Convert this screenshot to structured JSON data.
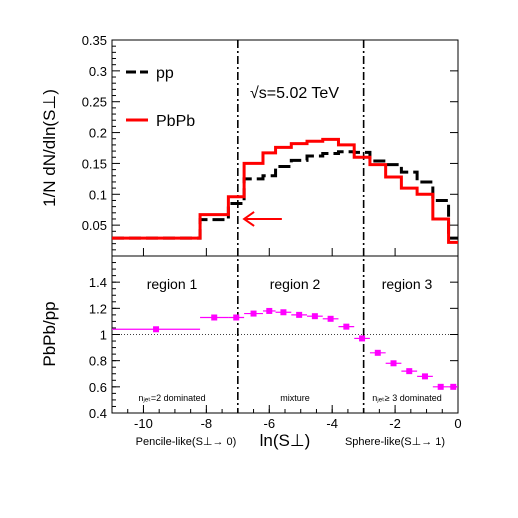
{
  "chart_data": [
    {
      "type": "step",
      "panel": "top",
      "ylabel": "1/N dN/dln(S⊥)",
      "ylim": [
        0,
        0.35
      ],
      "yticks": [
        0.05,
        0.1,
        0.15,
        0.2,
        0.25,
        0.3,
        0.35
      ],
      "xlim": [
        -11,
        0
      ],
      "sqrt_s_label": "√s=5.02 TeV",
      "arrow": {
        "from_x": -5.6,
        "to_x": -6.8,
        "y": 0.06,
        "color": "#ff0000"
      },
      "series": [
        {
          "name": "pp",
          "style": "dashed",
          "color": "#000000",
          "edges": [
            -11,
            -8.2,
            -7.3,
            -6.8,
            -6.2,
            -5.8,
            -5.3,
            -4.8,
            -4.3,
            -3.8,
            -3.3,
            -2.8,
            -2.3,
            -1.8,
            -1.3,
            -0.8,
            -0.3,
            0
          ],
          "values": [
            0.029,
            0.059,
            0.085,
            0.125,
            0.13,
            0.145,
            0.155,
            0.162,
            0.166,
            0.169,
            0.168,
            0.154,
            0.148,
            0.136,
            0.12,
            0.09,
            0.029
          ]
        },
        {
          "name": "PbPb",
          "style": "solid",
          "color": "#ff0000",
          "edges": [
            -11,
            -8.2,
            -7.3,
            -6.8,
            -6.2,
            -5.8,
            -5.3,
            -4.8,
            -4.3,
            -3.8,
            -3.3,
            -2.8,
            -2.3,
            -1.8,
            -1.3,
            -0.8,
            -0.3,
            0
          ],
          "values": [
            0.029,
            0.067,
            0.096,
            0.15,
            0.167,
            0.176,
            0.182,
            0.186,
            0.189,
            0.18,
            0.16,
            0.148,
            0.128,
            0.11,
            0.1,
            0.06,
            0.022
          ]
        }
      ]
    },
    {
      "type": "scatter",
      "panel": "bottom",
      "ylabel": "PbPb/pp",
      "xlabel": "ln(S⊥)",
      "ylim": [
        0.4,
        1.6
      ],
      "yticks": [
        0.4,
        0.6,
        0.8,
        1,
        1.2,
        1.4
      ],
      "xlim": [
        -11,
        0
      ],
      "xticks": [
        -10,
        -8,
        -6,
        -4,
        -2,
        0
      ],
      "reference_line": 1,
      "region_boundaries": [
        -7,
        -3
      ],
      "regions": [
        {
          "label": "region 1",
          "note": "nⱼₑₜ=2 dominated"
        },
        {
          "label": "region 2",
          "note": "mixture"
        },
        {
          "label": "region 3",
          "note": "nⱼₑₜ≥ 3 dominated"
        }
      ],
      "x_limit_labels": {
        "left": "Pencile-like(S⊥→ 0)",
        "right": "Sphere-like(S⊥→ 1)"
      },
      "series": [
        {
          "name": "",
          "color": "#ff00ff",
          "points": [
            {
              "x": -9.6,
              "y": 1.04,
              "xlo": -11,
              "xhi": -8.2
            },
            {
              "x": -7.75,
              "y": 1.13,
              "xlo": -8.2,
              "xhi": -7.3
            },
            {
              "x": -7.05,
              "y": 1.13,
              "xlo": -7.3,
              "xhi": -6.8
            },
            {
              "x": -6.5,
              "y": 1.16,
              "xlo": -6.8,
              "xhi": -6.2
            },
            {
              "x": -6.0,
              "y": 1.18,
              "xlo": -6.2,
              "xhi": -5.8
            },
            {
              "x": -5.55,
              "y": 1.17,
              "xlo": -5.8,
              "xhi": -5.3
            },
            {
              "x": -5.05,
              "y": 1.15,
              "xlo": -5.3,
              "xhi": -4.8
            },
            {
              "x": -4.55,
              "y": 1.14,
              "xlo": -4.8,
              "xhi": -4.3
            },
            {
              "x": -4.05,
              "y": 1.12,
              "xlo": -4.3,
              "xhi": -3.8
            },
            {
              "x": -3.55,
              "y": 1.06,
              "xlo": -3.8,
              "xhi": -3.3
            },
            {
              "x": -3.05,
              "y": 0.97,
              "xlo": -3.3,
              "xhi": -2.8
            },
            {
              "x": -2.55,
              "y": 0.86,
              "xlo": -2.8,
              "xhi": -2.3
            },
            {
              "x": -2.05,
              "y": 0.78,
              "xlo": -2.3,
              "xhi": -1.8
            },
            {
              "x": -1.55,
              "y": 0.72,
              "xlo": -1.8,
              "xhi": -1.3
            },
            {
              "x": -1.05,
              "y": 0.68,
              "xlo": -1.3,
              "xhi": -0.8
            },
            {
              "x": -0.55,
              "y": 0.6,
              "xlo": -0.8,
              "xhi": -0.3
            },
            {
              "x": -0.15,
              "y": 0.6,
              "xlo": -0.3,
              "xhi": 0
            }
          ]
        }
      ]
    }
  ]
}
